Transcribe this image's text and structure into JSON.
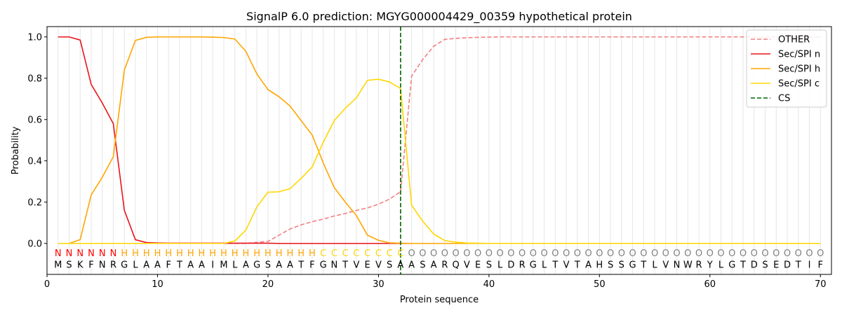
{
  "chart_data": {
    "type": "line",
    "title": "SignalP 6.0 prediction: MGYG000004429_00359 hypothetical protein",
    "xlabel": "Protein sequence",
    "ylabel": "Probability",
    "xlim": [
      0,
      71
    ],
    "ylim": [
      -0.15,
      1.05
    ],
    "xticks": [
      0,
      10,
      20,
      30,
      40,
      50,
      60,
      70
    ],
    "yticks": [
      0.0,
      0.2,
      0.4,
      0.6,
      0.8,
      1.0
    ],
    "xtick_labels": [
      "0",
      "10",
      "20",
      "30",
      "40",
      "50",
      "60",
      "70"
    ],
    "ytick_labels": [
      "0.0",
      "0.2",
      "0.4",
      "0.6",
      "0.8",
      "1.0"
    ],
    "legend_position": "top-right",
    "grid": "vertical lines at each residue",
    "sequence": [
      "M",
      "S",
      "K",
      "F",
      "N",
      "R",
      "G",
      "L",
      "A",
      "A",
      "F",
      "T",
      "A",
      "A",
      "I",
      "M",
      "L",
      "A",
      "G",
      "S",
      "A",
      "A",
      "T",
      "F",
      "G",
      "N",
      "T",
      "V",
      "E",
      "V",
      "S",
      "A",
      "A",
      "S",
      "A",
      "R",
      "Q",
      "V",
      "E",
      "S",
      "L",
      "D",
      "R",
      "G",
      "L",
      "T",
      "V",
      "T",
      "A",
      "H",
      "S",
      "S",
      "G",
      "T",
      "L",
      "V",
      "N",
      "W",
      "R",
      "Y",
      "L",
      "G",
      "T",
      "D",
      "S",
      "E",
      "D",
      "T",
      "I",
      "F"
    ],
    "labels": [
      "N",
      "N",
      "N",
      "N",
      "N",
      "N",
      "H",
      "H",
      "H",
      "H",
      "H",
      "H",
      "H",
      "H",
      "H",
      "H",
      "H",
      "H",
      "H",
      "H",
      "H",
      "H",
      "H",
      "H",
      "C",
      "C",
      "C",
      "C",
      "C",
      "C",
      "C",
      "C",
      "O",
      "O",
      "O",
      "O",
      "O",
      "O",
      "O",
      "O",
      "O",
      "O",
      "O",
      "O",
      "O",
      "O",
      "O",
      "O",
      "O",
      "O",
      "O",
      "O",
      "O",
      "O",
      "O",
      "O",
      "O",
      "O",
      "O",
      "O",
      "O",
      "O",
      "O",
      "O",
      "O",
      "O",
      "O",
      "O",
      "O",
      "O"
    ],
    "label_colors": {
      "N": "#ff0000",
      "H": "#ffa500",
      "C": "#ffd700",
      "O": "#808080"
    },
    "cleavage_site": 32,
    "series": [
      {
        "name": "OTHER",
        "color": "#f08080",
        "dash": "dashed",
        "values": [
          0,
          0,
          0,
          0,
          0,
          0,
          0,
          0,
          0,
          0,
          0,
          0,
          0,
          0,
          0,
          0,
          0,
          0,
          0.005,
          0.01,
          0.04,
          0.07,
          0.09,
          0.105,
          0.118,
          0.133,
          0.145,
          0.16,
          0.172,
          0.19,
          0.215,
          0.25,
          0.81,
          0.89,
          0.955,
          0.988,
          0.993,
          0.996,
          0.998,
          0.999,
          1,
          1,
          1,
          1,
          1,
          1,
          1,
          1,
          1,
          1,
          1,
          1,
          1,
          1,
          1,
          1,
          1,
          1,
          1,
          1,
          1,
          1,
          1,
          1,
          1,
          1,
          1,
          1,
          1,
          1
        ]
      },
      {
        "name": "Sec/SPI n",
        "color": "#e8141a",
        "dash": "solid",
        "values": [
          1.0,
          1.0,
          0.985,
          0.77,
          0.68,
          0.58,
          0.16,
          0.018,
          0.004,
          0.002,
          0.001,
          0.001,
          0.001,
          0.001,
          0.001,
          0.001,
          0.001,
          0.001,
          0.001,
          0.001,
          0,
          0,
          0,
          0,
          0,
          0,
          0,
          0,
          0,
          0,
          0,
          0,
          0,
          0,
          0,
          0,
          0,
          0,
          0,
          0,
          0,
          0,
          0,
          0,
          0,
          0,
          0,
          0,
          0,
          0,
          0,
          0,
          0,
          0,
          0,
          0,
          0,
          0,
          0,
          0,
          0,
          0,
          0,
          0,
          0,
          0,
          0,
          0,
          0,
          0
        ]
      },
      {
        "name": "Sec/SPI h",
        "color": "#ffa500",
        "dash": "solid",
        "values": [
          0,
          0,
          0.018,
          0.235,
          0.32,
          0.42,
          0.84,
          0.983,
          0.998,
          1.0,
          1.0,
          1.0,
          1.0,
          1.0,
          0.999,
          0.997,
          0.99,
          0.93,
          0.82,
          0.745,
          0.71,
          0.665,
          0.595,
          0.525,
          0.39,
          0.27,
          0.2,
          0.135,
          0.04,
          0.015,
          0.003,
          0.001,
          0,
          0,
          0,
          0,
          0,
          0,
          0,
          0,
          0,
          0,
          0,
          0,
          0,
          0,
          0,
          0,
          0,
          0,
          0,
          0,
          0,
          0,
          0,
          0,
          0,
          0,
          0,
          0,
          0,
          0,
          0,
          0,
          0,
          0,
          0,
          0,
          0,
          0
        ]
      },
      {
        "name": "Sec/SPI c",
        "color": "#ffd700",
        "dash": "solid",
        "values": [
          0,
          0,
          0,
          0,
          0,
          0,
          0,
          0,
          0,
          0,
          0,
          0,
          0,
          0,
          0,
          0,
          0.012,
          0.065,
          0.178,
          0.248,
          0.25,
          0.265,
          0.315,
          0.37,
          0.49,
          0.595,
          0.655,
          0.705,
          0.79,
          0.795,
          0.782,
          0.75,
          0.185,
          0.108,
          0.045,
          0.014,
          0.006,
          0.002,
          0.001,
          0,
          0,
          0,
          0,
          0,
          0,
          0,
          0,
          0,
          0,
          0,
          0,
          0,
          0,
          0,
          0,
          0,
          0,
          0,
          0,
          0,
          0,
          0,
          0,
          0,
          0,
          0,
          0,
          0,
          0,
          0
        ]
      },
      {
        "name": "CS",
        "color": "#006400",
        "dash": "dashed",
        "x": 32
      }
    ]
  }
}
